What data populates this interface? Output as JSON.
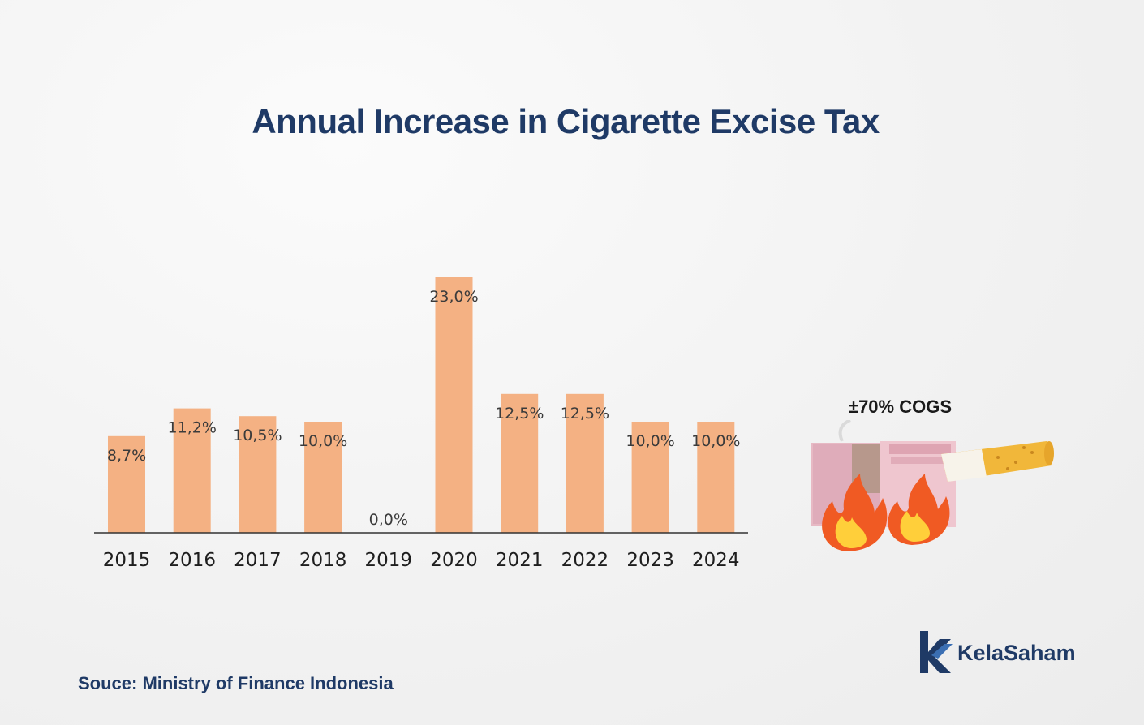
{
  "chart_data": {
    "type": "bar",
    "title": "Annual Increase in Cigarette Excise Tax",
    "categories": [
      "2015",
      "2016",
      "2017",
      "2018",
      "2019",
      "2020",
      "2021",
      "2022",
      "2023",
      "2024"
    ],
    "values": [
      8.7,
      11.2,
      10.5,
      10.0,
      0.0,
      23.0,
      12.5,
      12.5,
      10.0,
      10.0
    ],
    "labels": [
      "8,7%",
      "11,2%",
      "10,5%",
      "10,0%",
      "0,0%",
      "23,0%",
      "12,5%",
      "12,5%",
      "10,0%",
      "10,0%"
    ],
    "bar_color": "#f4b183",
    "ylim": [
      0,
      23
    ],
    "grid": false,
    "legend": "none"
  },
  "annotation": {
    "cogs": "±70% COGS"
  },
  "source": "Souce: Ministry of Finance Indonesia",
  "brand": {
    "name": "KelaSaham",
    "color": "#1f3a66"
  },
  "colors": {
    "title": "#1f3a66",
    "text": "#1e1e1e"
  }
}
